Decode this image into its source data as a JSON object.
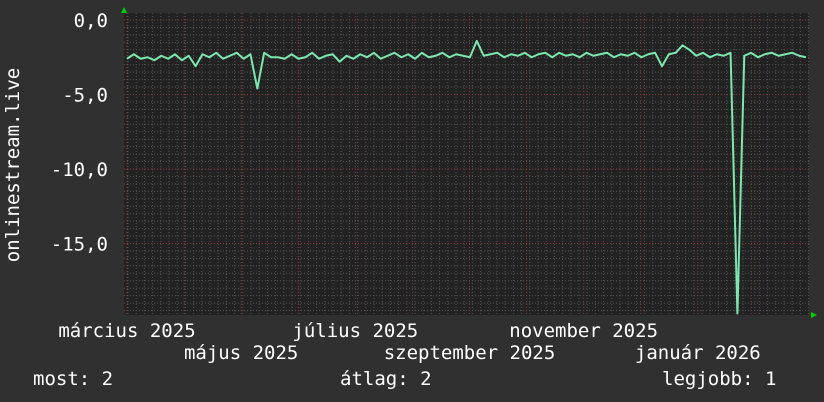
{
  "chart_data": {
    "type": "line",
    "ylabel": "onlinestream.live",
    "xlabel": "",
    "ylim": [
      -19.7,
      0.6
    ],
    "x_range": [
      "2025-03-01",
      "2026-03-01"
    ],
    "yticks": [
      {
        "value": 0,
        "label": "0,0"
      },
      {
        "value": -5,
        "label": "-5,0"
      },
      {
        "value": -10,
        "label": "-10,0"
      },
      {
        "value": -15,
        "label": "-15,0"
      }
    ],
    "xticks": [
      {
        "month_index": 0,
        "label": "március 2025"
      },
      {
        "month_index": 2,
        "label": "május 2025"
      },
      {
        "month_index": 4,
        "label": "július 2025"
      },
      {
        "month_index": 6,
        "label": "szeptember 2025"
      },
      {
        "month_index": 8,
        "label": "november 2025"
      },
      {
        "month_index": 10,
        "label": "január 2026"
      }
    ],
    "grid": true,
    "series": [
      {
        "color": "#7ce8b0",
        "values": [
          -2.6,
          -2.3,
          -2.6,
          -2.5,
          -2.7,
          -2.4,
          -2.6,
          -2.3,
          -2.7,
          -2.4,
          -3.1,
          -2.3,
          -2.5,
          -2.2,
          -2.6,
          -2.4,
          -2.2,
          -2.6,
          -2.3,
          -4.6,
          -2.2,
          -2.5,
          -2.5,
          -2.6,
          -2.3,
          -2.6,
          -2.5,
          -2.2,
          -2.6,
          -2.4,
          -2.3,
          -2.8,
          -2.4,
          -2.6,
          -2.3,
          -2.5,
          -2.2,
          -2.6,
          -2.4,
          -2.2,
          -2.5,
          -2.3,
          -2.6,
          -2.2,
          -2.5,
          -2.4,
          -2.2,
          -2.5,
          -2.3,
          -2.4,
          -2.5,
          -1.4,
          -2.4,
          -2.3,
          -2.2,
          -2.5,
          -2.3,
          -2.4,
          -2.2,
          -2.5,
          -2.3,
          -2.2,
          -2.5,
          -2.2,
          -2.4,
          -2.3,
          -2.5,
          -2.2,
          -2.4,
          -2.3,
          -2.2,
          -2.5,
          -2.3,
          -2.4,
          -2.2,
          -2.5,
          -2.3,
          -2.2,
          -3.1,
          -2.3,
          -2.2,
          -1.7,
          -2.0,
          -2.4,
          -2.2,
          -2.5,
          -2.3,
          -2.4,
          -2.2,
          -19.7,
          -2.4,
          -2.2,
          -2.5,
          -2.3,
          -2.2,
          -2.4,
          -2.3,
          -2.2,
          -2.4,
          -2.5
        ]
      }
    ]
  },
  "legend": {
    "current": "most: 2",
    "average": "átlag: 2",
    "best": "legjobb: 1"
  },
  "colors": {
    "background": "#303030",
    "plot_background": "#222222",
    "minor_grid": "#555555",
    "major_grid": "#8a3a3a",
    "arrow": "#00d000"
  }
}
